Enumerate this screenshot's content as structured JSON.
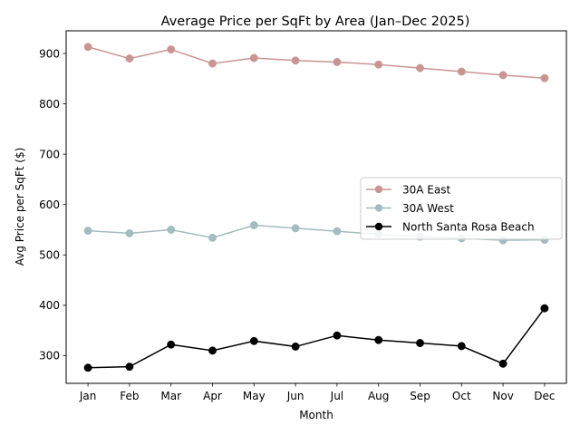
{
  "chart_data": {
    "type": "line",
    "title": "Average Price per SqFt by Area (Jan–Dec 2025)",
    "xlabel": "Month",
    "ylabel": "Avg Price per SqFt ($)",
    "categories": [
      "Jan",
      "Feb",
      "Mar",
      "Apr",
      "May",
      "Jun",
      "Jul",
      "Aug",
      "Sep",
      "Oct",
      "Nov",
      "Dec"
    ],
    "ylim": [
      245,
      945
    ],
    "yticks": [
      300,
      400,
      500,
      600,
      700,
      800,
      900
    ],
    "grid": false,
    "legend_position": "center-right",
    "series": [
      {
        "name": "30A East",
        "color": "#c99593",
        "marker": "circle",
        "values": [
          913,
          890,
          908,
          880,
          891,
          886,
          883,
          878,
          871,
          864,
          857,
          851
        ]
      },
      {
        "name": "30A West",
        "color": "#a3bcbf",
        "marker": "circle",
        "values": [
          548,
          543,
          550,
          534,
          559,
          553,
          547,
          541,
          536,
          533,
          529,
          530
        ]
      },
      {
        "name": "North Santa Rosa Beach",
        "color": "#000000",
        "marker": "circle",
        "values": [
          276,
          278,
          322,
          310,
          329,
          318,
          340,
          331,
          325,
          319,
          284,
          394
        ]
      }
    ]
  }
}
